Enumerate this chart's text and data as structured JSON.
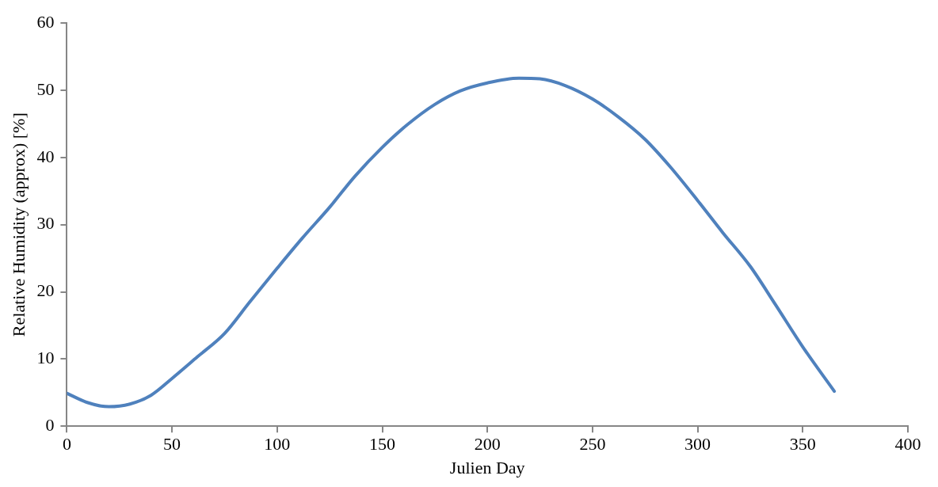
{
  "chart_data": {
    "type": "line",
    "xlabel": "Julien Day",
    "ylabel": "Relative Humidity (approx) [%]",
    "series": [
      {
        "color": "#4f81bd",
        "x": [
          0,
          10,
          20,
          30,
          40,
          50,
          62,
          75,
          87,
          100,
          112,
          125,
          137,
          150,
          162,
          175,
          187,
          200,
          215,
          225,
          237,
          250,
          262,
          275,
          287,
          300,
          312,
          325,
          337,
          350,
          365
        ],
        "values": [
          4.9,
          3.5,
          2.9,
          3.3,
          4.6,
          7.1,
          10.3,
          13.8,
          18.5,
          23.5,
          28.0,
          32.6,
          37.2,
          41.5,
          44.9,
          47.9,
          49.9,
          51.1,
          51.8,
          51.7,
          50.7,
          48.7,
          46.1,
          42.7,
          38.6,
          33.6,
          28.8,
          23.8,
          18.1,
          11.8,
          5.2
        ]
      }
    ],
    "xlim": [
      0,
      400
    ],
    "xticks": [
      0,
      50,
      100,
      150,
      200,
      250,
      300,
      350,
      400
    ],
    "ylim": [
      0,
      60
    ],
    "yticks": [
      0,
      10,
      20,
      30,
      40,
      50,
      60
    ],
    "grid": false,
    "legend": false,
    "marker": "none",
    "line_style": "solid"
  }
}
